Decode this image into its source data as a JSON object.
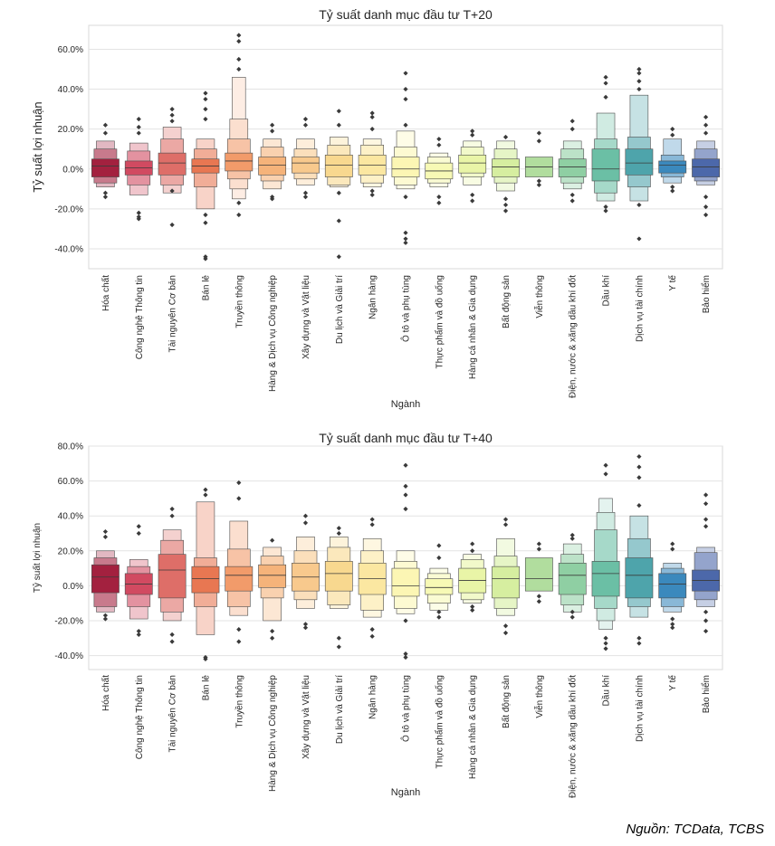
{
  "source_note": "Nguồn: TCData, TCBS",
  "colors": [
    "#a3213f",
    "#d14a61",
    "#de6e68",
    "#e87752",
    "#f29b6a",
    "#f5b37a",
    "#f8c98d",
    "#f8d88f",
    "#fbe7a1",
    "#fcf6b4",
    "#f7f9b5",
    "#e9f5a7",
    "#d6eea0",
    "#b1dd9e",
    "#8fcfa3",
    "#6bbfa5",
    "#4ea4ab",
    "#3b89bd",
    "#4c68aa"
  ],
  "chart_data": [
    {
      "type": "boxen",
      "title": "Tỷ suất danh mục đầu tư T+20",
      "xlabel": "Ngành",
      "ylabel": "Tỷ suất lợi nhuận",
      "ylim": [
        -50,
        72
      ],
      "yticks": [
        -40,
        -20,
        0,
        20,
        40,
        60
      ],
      "ytick_labels": [
        "-40.0%",
        "-20.0%",
        "0.0%",
        "20.0%",
        "40.0%",
        "60.0%"
      ],
      "grid": true,
      "categories": [
        "Hóa chất",
        "Công nghệ Thông tin",
        "Tài nguyên Cơ bản",
        "Bán lẻ",
        "Truyền thông",
        "Hàng & Dịch vụ Công nghiệp",
        "Xây dựng và Vật liệu",
        "Du lịch và Giải trí",
        "Ngân hàng",
        "Ô tô và phụ tùng",
        "Thực phẩm và đồ uống",
        "Hàng cá nhân & Gia dụng",
        "Bất động sản",
        "Viễn thông",
        "Điện, nước & xăng dầu khí đốt",
        "Dầu khí",
        "Dịch vụ tài chính",
        "Y tế",
        "Bảo hiểm"
      ],
      "medians": [
        1.5,
        0.5,
        3,
        1.5,
        4,
        2,
        3,
        2,
        2,
        0,
        -1,
        3,
        1,
        1,
        1,
        0,
        3,
        2,
        1
      ],
      "box_levels": [
        [
          [
            -4,
            5
          ],
          [
            -7,
            10
          ],
          [
            -9,
            14
          ]
        ],
        [
          [
            -3,
            4
          ],
          [
            -8,
            9
          ],
          [
            -13,
            13
          ]
        ],
        [
          [
            -3,
            8
          ],
          [
            -8,
            15
          ],
          [
            -12,
            21
          ]
        ],
        [
          [
            -2,
            5
          ],
          [
            -9,
            10
          ],
          [
            -20,
            15
          ]
        ],
        [
          [
            -1,
            8
          ],
          [
            -5,
            15
          ],
          [
            -10,
            25
          ],
          [
            -15,
            46
          ]
        ],
        [
          [
            -3,
            6
          ],
          [
            -6,
            11
          ],
          [
            -10,
            15
          ]
        ],
        [
          [
            -2,
            6
          ],
          [
            -5,
            10
          ],
          [
            -8,
            15
          ]
        ],
        [
          [
            -4,
            7
          ],
          [
            -8,
            12
          ],
          [
            -9,
            16
          ]
        ],
        [
          [
            -3,
            7
          ],
          [
            -7,
            12
          ],
          [
            -9,
            15
          ]
        ],
        [
          [
            -4,
            6
          ],
          [
            -8,
            11
          ],
          [
            -10,
            19
          ]
        ],
        [
          [
            -5,
            3
          ],
          [
            -7,
            6
          ],
          [
            -9,
            8
          ]
        ],
        [
          [
            -2,
            7
          ],
          [
            -4,
            11
          ],
          [
            -8,
            14
          ]
        ],
        [
          [
            -4,
            5
          ],
          [
            -7,
            10
          ],
          [
            -11,
            14
          ]
        ],
        [
          [
            -4,
            6
          ]
        ],
        [
          [
            -4,
            5
          ],
          [
            -7,
            10
          ],
          [
            -10,
            14
          ]
        ],
        [
          [
            -6,
            10
          ],
          [
            -12,
            15
          ],
          [
            -16,
            28
          ]
        ],
        [
          [
            -3,
            10
          ],
          [
            -9,
            16
          ],
          [
            -16,
            37
          ]
        ],
        [
          [
            -2,
            4
          ],
          [
            -4,
            7
          ],
          [
            -7,
            15
          ]
        ],
        [
          [
            -4,
            5
          ],
          [
            -6,
            10
          ],
          [
            -8,
            14
          ]
        ]
      ],
      "outliers": [
        [
          22,
          18,
          -12,
          -14
        ],
        [
          25,
          21,
          18,
          -22,
          -24,
          -25
        ],
        [
          30,
          27,
          24,
          -11,
          -28
        ],
        [
          38,
          35,
          30,
          25,
          -23,
          -27,
          -44,
          -45
        ],
        [
          67,
          64,
          55,
          50,
          -17,
          -23
        ],
        [
          22,
          19,
          -14,
          -15
        ],
        [
          25,
          22,
          -12,
          -14
        ],
        [
          29,
          22,
          -12,
          -26,
          -44
        ],
        [
          28,
          26,
          20,
          -11,
          -13
        ],
        [
          48,
          40,
          35,
          22,
          -14,
          -32,
          -35,
          -37
        ],
        [
          15,
          12,
          -14,
          -17
        ],
        [
          19,
          17,
          -13,
          -16
        ],
        [
          16,
          -15,
          -18,
          -21
        ],
        [
          18,
          14,
          -6,
          -8
        ],
        [
          24,
          20,
          -13,
          -16
        ],
        [
          46,
          43,
          36,
          -19,
          -21
        ],
        [
          50,
          48,
          44,
          40,
          -18,
          -35
        ],
        [
          20,
          17,
          -9,
          -11
        ],
        [
          26,
          22,
          18,
          -14,
          -19,
          -23
        ]
      ]
    },
    {
      "type": "boxen",
      "title": "Tỷ suất danh mục đầu tư T+40",
      "xlabel": "Ngành",
      "ylabel": "Tỷ suất lợi nhuận",
      "ylim": [
        -48,
        80
      ],
      "yticks": [
        -40,
        -20,
        0,
        20,
        40,
        60,
        80
      ],
      "ytick_labels": [
        "-40.0%",
        "-20.0%",
        "0.0%",
        "20.0%",
        "40.0%",
        "60.0%",
        "80.0%"
      ],
      "grid": true,
      "categories": [
        "Hóa chất",
        "Công nghệ Thông tin",
        "Tài nguyên Cơ bản",
        "Bán lẻ",
        "Truyền thông",
        "Hàng & Dịch vụ Công nghiệp",
        "Xây dựng và Vật liệu",
        "Du lịch và Giải trí",
        "Ngân hàng",
        "Ô tô và phụ tùng",
        "Thực phẩm và đồ uống",
        "Hàng cá nhân & Gia dụng",
        "Bất động sản",
        "Viễn thông",
        "Điện, nước & xăng dầu khí đốt",
        "Dầu khí",
        "Dịch vụ tài chính",
        "Y tế",
        "Bảo hiểm"
      ],
      "medians": [
        5,
        1,
        9,
        4,
        6,
        6,
        5,
        7,
        4,
        0,
        -1,
        3,
        4,
        4,
        6,
        7,
        6,
        1,
        3
      ],
      "box_levels": [
        [
          [
            -4,
            12
          ],
          [
            -12,
            16
          ],
          [
            -15,
            20
          ]
        ],
        [
          [
            -5,
            7
          ],
          [
            -12,
            11
          ],
          [
            -19,
            15
          ]
        ],
        [
          [
            -7,
            18
          ],
          [
            -15,
            26
          ],
          [
            -20,
            32
          ]
        ],
        [
          [
            -4,
            11
          ],
          [
            -12,
            16
          ],
          [
            -28,
            48
          ]
        ],
        [
          [
            -3,
            11
          ],
          [
            -12,
            21
          ],
          [
            -17,
            37
          ]
        ],
        [
          [
            -1,
            12
          ],
          [
            -7,
            17
          ],
          [
            -20,
            22
          ]
        ],
        [
          [
            -3,
            13
          ],
          [
            -8,
            20
          ],
          [
            -13,
            28
          ]
        ],
        [
          [
            -3,
            14
          ],
          [
            -11,
            22
          ],
          [
            -13,
            28
          ]
        ],
        [
          [
            -5,
            13
          ],
          [
            -14,
            20
          ],
          [
            -18,
            27
          ]
        ],
        [
          [
            -6,
            10
          ],
          [
            -13,
            14
          ],
          [
            -16,
            20
          ]
        ],
        [
          [
            -5,
            4
          ],
          [
            -10,
            7
          ],
          [
            -14,
            10
          ]
        ],
        [
          [
            -4,
            10
          ],
          [
            -8,
            15
          ],
          [
            -10,
            18
          ]
        ],
        [
          [
            -7,
            11
          ],
          [
            -13,
            17
          ],
          [
            -17,
            27
          ]
        ],
        [
          [
            -3,
            16
          ]
        ],
        [
          [
            -5,
            13
          ],
          [
            -11,
            18
          ],
          [
            -15,
            24
          ]
        ],
        [
          [
            -6,
            14
          ],
          [
            -13,
            32
          ],
          [
            -20,
            42
          ],
          [
            -25,
            50
          ]
        ],
        [
          [
            -7,
            16
          ],
          [
            -12,
            27
          ],
          [
            -18,
            40
          ]
        ],
        [
          [
            -7,
            7
          ],
          [
            -12,
            10
          ],
          [
            -15,
            13
          ]
        ],
        [
          [
            -3,
            9
          ],
          [
            -8,
            19
          ],
          [
            -12,
            22
          ]
        ]
      ],
      "outliers": [
        [
          31,
          28,
          -17,
          -19
        ],
        [
          34,
          30,
          -26,
          -28
        ],
        [
          44,
          40,
          -28,
          -32
        ],
        [
          55,
          52,
          -41,
          -42
        ],
        [
          59,
          50,
          -25,
          -32
        ],
        [
          26,
          -26,
          -30
        ],
        [
          40,
          36,
          -22,
          -24
        ],
        [
          33,
          30,
          -30,
          -35
        ],
        [
          38,
          35,
          -25,
          -29
        ],
        [
          69,
          57,
          52,
          44,
          -20,
          -39,
          -41
        ],
        [
          23,
          16,
          -15,
          -18
        ],
        [
          24,
          20,
          -12,
          -14
        ],
        [
          38,
          35,
          -23,
          -27
        ],
        [
          24,
          21,
          -6,
          -9
        ],
        [
          29,
          27,
          -15,
          -18
        ],
        [
          69,
          64,
          -30,
          -33,
          -36
        ],
        [
          74,
          68,
          62,
          46,
          -30,
          -33
        ],
        [
          24,
          21,
          -19,
          -22,
          -24
        ],
        [
          52,
          47,
          38,
          34,
          -15,
          -20,
          -26
        ]
      ]
    }
  ]
}
